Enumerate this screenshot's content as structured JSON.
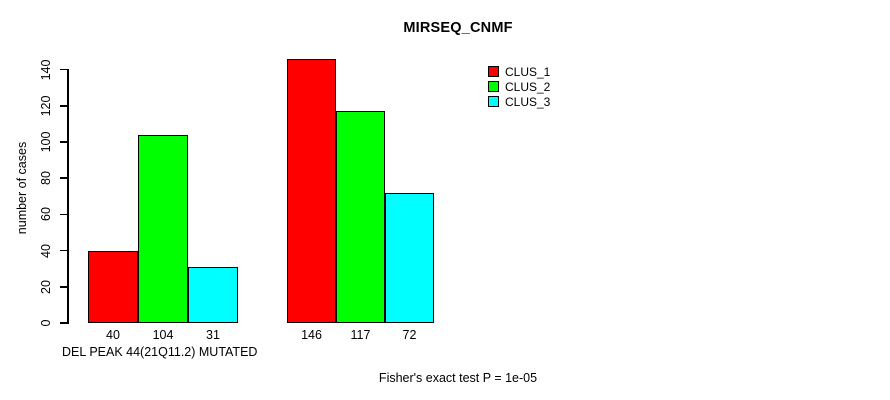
{
  "title": "MIRSEQ_CNMF",
  "footer": "Fisher's exact test P = 1e-05",
  "chart_data": {
    "type": "bar",
    "title": "MIRSEQ_CNMF",
    "ylabel": "number of cases",
    "xlabel": "DEL PEAK 44(21Q11.2) MUTATED",
    "annotation": "Fisher's exact test P = 1e-05",
    "categories": [
      "",
      ""
    ],
    "series": [
      {
        "name": "CLUS_1",
        "color": "#ff0000",
        "values": [
          40,
          146
        ]
      },
      {
        "name": "CLUS_2",
        "color": "#00ff00",
        "values": [
          104,
          117
        ]
      },
      {
        "name": "CLUS_3",
        "color": "#00ffff",
        "values": [
          31,
          72
        ]
      }
    ],
    "bar_value_labels": [
      [
        40,
        104,
        31
      ],
      [
        146,
        117,
        72
      ]
    ],
    "yticks": [
      0,
      20,
      40,
      60,
      80,
      100,
      120,
      140
    ],
    "ylim": [
      0,
      146
    ],
    "grid": false,
    "legend_position": "top-right",
    "background": "#ffffff"
  }
}
